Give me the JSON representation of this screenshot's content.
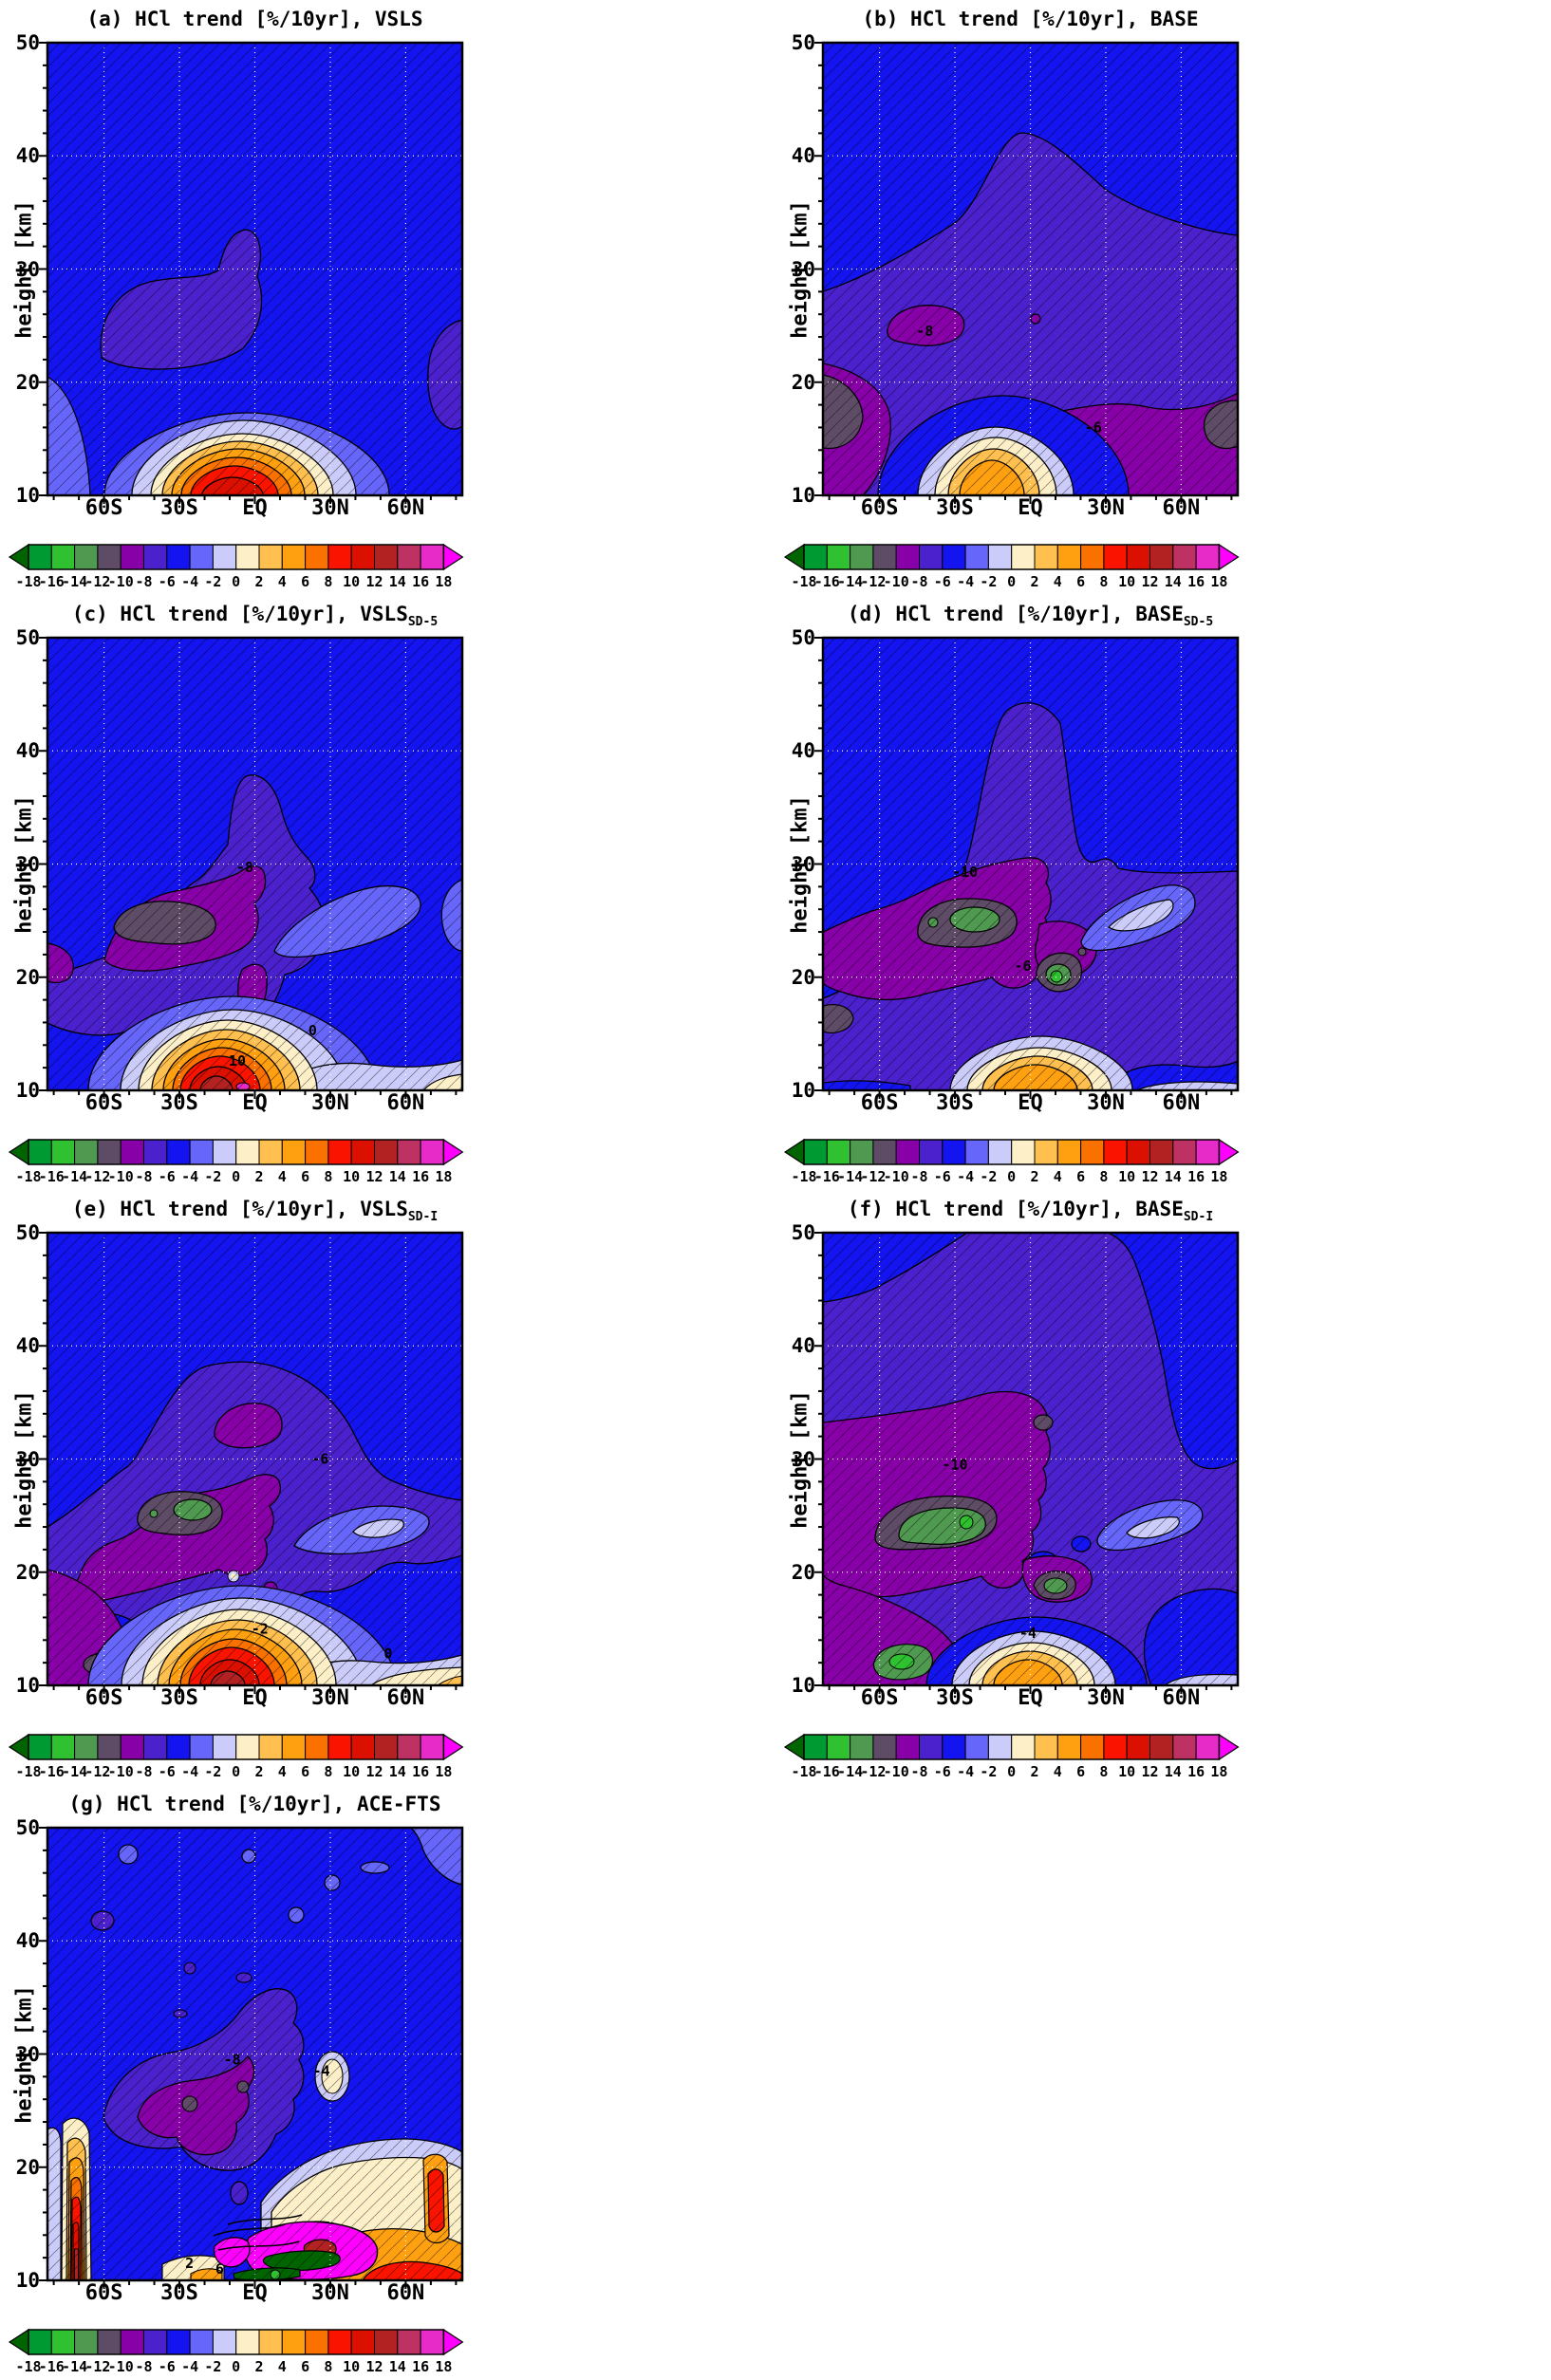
{
  "figure": {
    "description": "Seven-panel latitude-height filled contour figure of HCl trends for model experiments and ACE-FTS observations",
    "value_units": "%/10yr"
  },
  "axes": {
    "ylabel": "height [km]",
    "y_ticks": [
      {
        "label": "50",
        "km": 50
      },
      {
        "label": "40",
        "km": 40
      },
      {
        "label": "30",
        "km": 30
      },
      {
        "label": "20",
        "km": 20
      },
      {
        "label": "10",
        "km": 10
      }
    ],
    "x_ticks": [
      {
        "label": "60S",
        "lat": -60
      },
      {
        "label": "30S",
        "lat": -30
      },
      {
        "label": "EQ",
        "lat": 0
      },
      {
        "label": "30N",
        "lat": 30
      },
      {
        "label": "60N",
        "lat": 60
      }
    ],
    "grid_lats": [
      -60,
      -30,
      0,
      30,
      60
    ],
    "grid_kms": [
      20,
      30,
      40
    ],
    "lat_range_deg": [
      -82.5,
      82.5
    ],
    "height_range_km": [
      10,
      50
    ]
  },
  "colorbar": {
    "tick_labels": [
      "-18",
      "-16",
      "-14",
      "-12",
      "-10",
      "-8",
      "-6",
      "-4",
      "-2",
      "0",
      "2",
      "4",
      "6",
      "8",
      "10",
      "12",
      "14",
      "16",
      "18"
    ],
    "cell_colors": [
      "#009A33",
      "#2FC12F",
      "#4F9950",
      "#5E4B66",
      "#8800A8",
      "#4B21CD",
      "#1414F0",
      "#6666FA",
      "#CCCCFA",
      "#FDF0C8",
      "#FFC050",
      "#FFA010",
      "#FB7100",
      "#FA1400",
      "#DC1000",
      "#B22222",
      "#BE3263",
      "#E62BC8"
    ],
    "arrow_left_color": "#006400",
    "arrow_right_color": "#FF00FF"
  },
  "panels": [
    {
      "id": "a",
      "title": "(a) HCl trend [%/10yr], VSLS",
      "title_sub": "",
      "contour_labels": []
    },
    {
      "id": "b",
      "title": "(b) HCl trend [%/10yr], BASE",
      "title_sub": "",
      "contour_labels": [
        {
          "text": "-8",
          "lat": -42,
          "km": 24.5
        },
        {
          "text": "-6",
          "lat": 25,
          "km": 16
        }
      ]
    },
    {
      "id": "c",
      "title": "(c) HCl trend [%/10yr], VSLS",
      "title_sub": "SD-5",
      "contour_labels": [
        {
          "text": "-8",
          "lat": -4,
          "km": 29.7
        },
        {
          "text": "0",
          "lat": 23,
          "km": 15.3
        },
        {
          "text": "10",
          "lat": -7,
          "km": 12.6
        }
      ]
    },
    {
      "id": "d",
      "title": "(d) HCl trend [%/10yr], BASE",
      "title_sub": "SD-5",
      "contour_labels": [
        {
          "text": "-10",
          "lat": -26,
          "km": 29.3
        },
        {
          "text": "-6",
          "lat": -3,
          "km": 21
        }
      ]
    },
    {
      "id": "e",
      "title": "(e) HCl trend [%/10yr], VSLS",
      "title_sub": "SD-I",
      "contour_labels": [
        {
          "text": "-6",
          "lat": 26,
          "km": 30
        },
        {
          "text": "-2",
          "lat": 2,
          "km": 15
        },
        {
          "text": "0",
          "lat": 53,
          "km": 12.8
        }
      ]
    },
    {
      "id": "f",
      "title": "(f) HCl trend [%/10yr], BASE",
      "title_sub": "SD-I",
      "contour_labels": [
        {
          "text": "-10",
          "lat": -30,
          "km": 29.5
        },
        {
          "text": "-4",
          "lat": -1,
          "km": 14.6
        }
      ]
    },
    {
      "id": "g",
      "title": "(g) HCl trend [%/10yr], ACE-FTS",
      "title_sub": "",
      "contour_labels": [
        {
          "text": "-8",
          "lat": -9,
          "km": 29.5
        },
        {
          "text": "-4",
          "lat": 26.5,
          "km": 28.5
        },
        {
          "text": "2",
          "lat": -26,
          "km": 11.5
        },
        {
          "text": "6",
          "lat": -14,
          "km": 11
        }
      ]
    }
  ],
  "chart_data": {
    "type": "heatmap",
    "subtype": "filled-contour latitude-height cross sections",
    "title": "HCl trend [%/10yr]",
    "value_units": "%/10yr",
    "contour_levels": [
      -18,
      -16,
      -14,
      -12,
      -10,
      -8,
      -6,
      -4,
      -2,
      0,
      2,
      4,
      6,
      8,
      10,
      12,
      14,
      16,
      18
    ],
    "xlabel": "latitude",
    "ylabel": "height [km]",
    "x_tick_labels": [
      "60S",
      "30S",
      "EQ",
      "30N",
      "60N"
    ],
    "y_tick_values": [
      10,
      20,
      30,
      40,
      50
    ],
    "grid": "white dotted gridlines at 60S/30S/EQ/30N/60N and 20/30/40 km",
    "hatching": "black diagonal hatching covers most of each panel",
    "legend_position": "horizontal colorbar below each panel, range -18 to 18 step 2, green-purple-blue for negative, cream-orange-red-magenta for positive",
    "sample_lats_deg": [
      -75,
      -45,
      -15,
      0,
      15,
      45,
      75
    ],
    "sample_heights_km": [
      12,
      16,
      22,
      30,
      40
    ],
    "panels": [
      {
        "name": "VSLS",
        "approx_values_by_height_km": {
          "12": [
            -3,
            -1,
            9,
            11,
            7,
            -2,
            -5
          ],
          "16": [
            -4,
            -3,
            1,
            3,
            0,
            -4,
            -5
          ],
          "22": [
            -5,
            -7,
            -6,
            -5,
            -5,
            -5,
            -6
          ],
          "30": [
            -5,
            -7,
            -7,
            -6,
            -5,
            -5,
            -5
          ],
          "40": [
            -5,
            -5,
            -5,
            -5,
            -5,
            -5,
            -5
          ]
        }
      },
      {
        "name": "BASE",
        "approx_values_by_height_km": {
          "12": [
            -8,
            -5,
            2,
            4,
            1,
            -6,
            -9
          ],
          "16": [
            -11,
            -7,
            -4,
            -3,
            -5,
            -7,
            -10
          ],
          "22": [
            -9,
            -8,
            -7,
            -7,
            -7,
            -8,
            -9
          ],
          "30": [
            -7,
            -7,
            -7,
            -7,
            -7,
            -7,
            -7
          ],
          "40": [
            -5,
            -6,
            -6,
            -6,
            -6,
            -5,
            -5
          ]
        }
      },
      {
        "name": "VSLS_SD-5",
        "approx_values_by_height_km": {
          "12": [
            -3,
            0,
            10,
            11,
            6,
            -2,
            -1
          ],
          "16": [
            -7,
            -2,
            3,
            -6,
            0,
            -3,
            -4
          ],
          "22": [
            -8,
            -9,
            -8,
            -7,
            -8,
            -4,
            -5
          ],
          "30": [
            -6,
            -8,
            -9,
            -8,
            -6,
            -5,
            -5
          ],
          "40": [
            -5,
            -5,
            -6,
            -6,
            -5,
            -5,
            -5
          ]
        }
      },
      {
        "name": "BASE_SD-5",
        "approx_values_by_height_km": {
          "12": [
            -7,
            -4,
            1,
            4,
            2,
            -3,
            -6
          ],
          "16": [
            -9,
            -6,
            -4,
            -14,
            -8,
            -6,
            -7
          ],
          "22": [
            -9,
            -12,
            -9,
            -7,
            -6,
            -4,
            -7
          ],
          "30": [
            -8,
            -10,
            -9,
            -8,
            -7,
            -7,
            -6
          ],
          "40": [
            -5,
            -7,
            -7,
            -7,
            -7,
            -6,
            -5
          ]
        }
      },
      {
        "name": "VSLS_SD-I",
        "approx_values_by_height_km": {
          "12": [
            -8,
            -10,
            9,
            11,
            8,
            0,
            1
          ],
          "16": [
            -9,
            -4,
            2,
            -1,
            -4,
            -2,
            -4
          ],
          "22": [
            -8,
            -10,
            -8,
            -4,
            -3,
            -3,
            -6
          ],
          "30": [
            -7,
            -8,
            -8,
            -6,
            -6,
            -5,
            -5
          ],
          "40": [
            -5,
            -6,
            -6,
            -6,
            -6,
            -5,
            -5
          ]
        }
      },
      {
        "name": "BASE_SD-I",
        "approx_values_by_height_km": {
          "12": [
            -9,
            -13,
            -2,
            4,
            0,
            -3,
            -5
          ],
          "16": [
            -10,
            -8,
            -6,
            -12,
            -9,
            -7,
            -7
          ],
          "22": [
            -10,
            -13,
            -10,
            -6,
            -5,
            -4,
            -7
          ],
          "30": [
            -8,
            -10,
            -9,
            -8,
            -7,
            -7,
            -7
          ],
          "40": [
            -7,
            -7,
            -8,
            -8,
            -7,
            -6,
            -6
          ]
        }
      },
      {
        "name": "ACE-FTS",
        "approx_values_by_height_km": {
          "12": [
            9,
            2,
            5,
            19,
            18,
            6,
            9
          ],
          "16": [
            6,
            -5,
            -3,
            17,
            18,
            2,
            3
          ],
          "22": [
            10,
            -7,
            -6,
            -2,
            1,
            1,
            7
          ],
          "30": [
            -6,
            -8,
            -8,
            -6,
            -4,
            -4,
            -5
          ],
          "40": [
            -5,
            -5,
            -6,
            -6,
            -5,
            -5,
            -5
          ]
        }
      }
    ]
  }
}
